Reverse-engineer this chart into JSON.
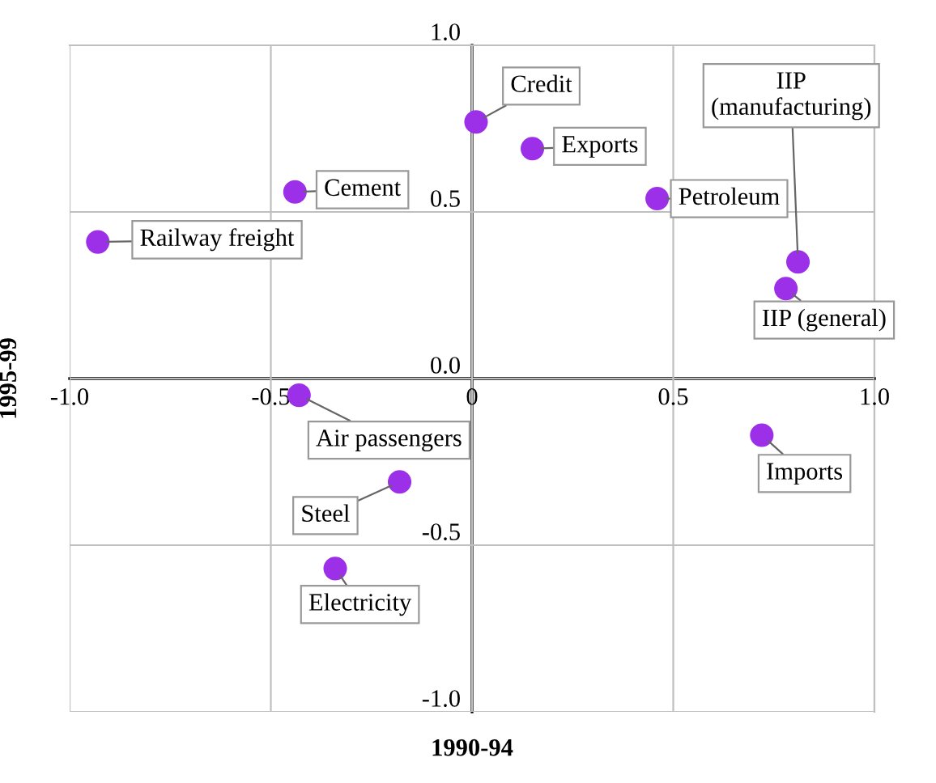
{
  "chart_data": {
    "type": "scatter",
    "xlabel": "1990-94",
    "ylabel": "1995-99",
    "x": [
      0.01,
      0.15,
      0.46,
      0.81,
      0.78,
      -0.44,
      -0.93,
      -0.43,
      -0.18,
      -0.34,
      0.72
    ],
    "values": [
      0.77,
      0.69,
      0.54,
      0.35,
      0.27,
      0.56,
      0.41,
      -0.05,
      -0.31,
      -0.57,
      -0.17
    ],
    "color": "#9b30e8",
    "marker": "circle",
    "annotations": [
      {
        "text": "Credit",
        "x": 0.01,
        "y": 0.77
      },
      {
        "text": "Exports",
        "x": 0.15,
        "y": 0.69
      },
      {
        "text": "Petroleum",
        "x": 0.46,
        "y": 0.54
      },
      {
        "text": "IIP\n(manufacturing)",
        "x": 0.81,
        "y": 0.35
      },
      {
        "text": "IIP (general)",
        "x": 0.78,
        "y": 0.27
      },
      {
        "text": "Cement",
        "x": -0.44,
        "y": 0.56
      },
      {
        "text": "Railway freight",
        "x": -0.93,
        "y": 0.41
      },
      {
        "text": "Air passengers",
        "x": -0.43,
        "y": -0.05
      },
      {
        "text": "Steel",
        "x": -0.18,
        "y": -0.31
      },
      {
        "text": "Electricity",
        "x": -0.34,
        "y": -0.57
      },
      {
        "text": "Imports",
        "x": 0.72,
        "y": -0.17
      }
    ],
    "xlim": [
      -1.0,
      1.0
    ],
    "ylim": [
      -1.0,
      1.0
    ],
    "xticks": [
      {
        "value": -1.0,
        "label": "-1.0"
      },
      {
        "value": -0.5,
        "label": "-0.5"
      },
      {
        "value": 0,
        "label": "0"
      },
      {
        "value": 0.5,
        "label": "0.5"
      },
      {
        "value": 1.0,
        "label": "1.0"
      }
    ],
    "yticks": [
      {
        "value": -1.0,
        "label": "-1.0"
      },
      {
        "value": -0.5,
        "label": "-0.5"
      },
      {
        "value": 0,
        "label": "0.0"
      },
      {
        "value": 0.5,
        "label": "0.5"
      },
      {
        "value": 1.0,
        "label": "1.0"
      }
    ],
    "grid": true
  }
}
